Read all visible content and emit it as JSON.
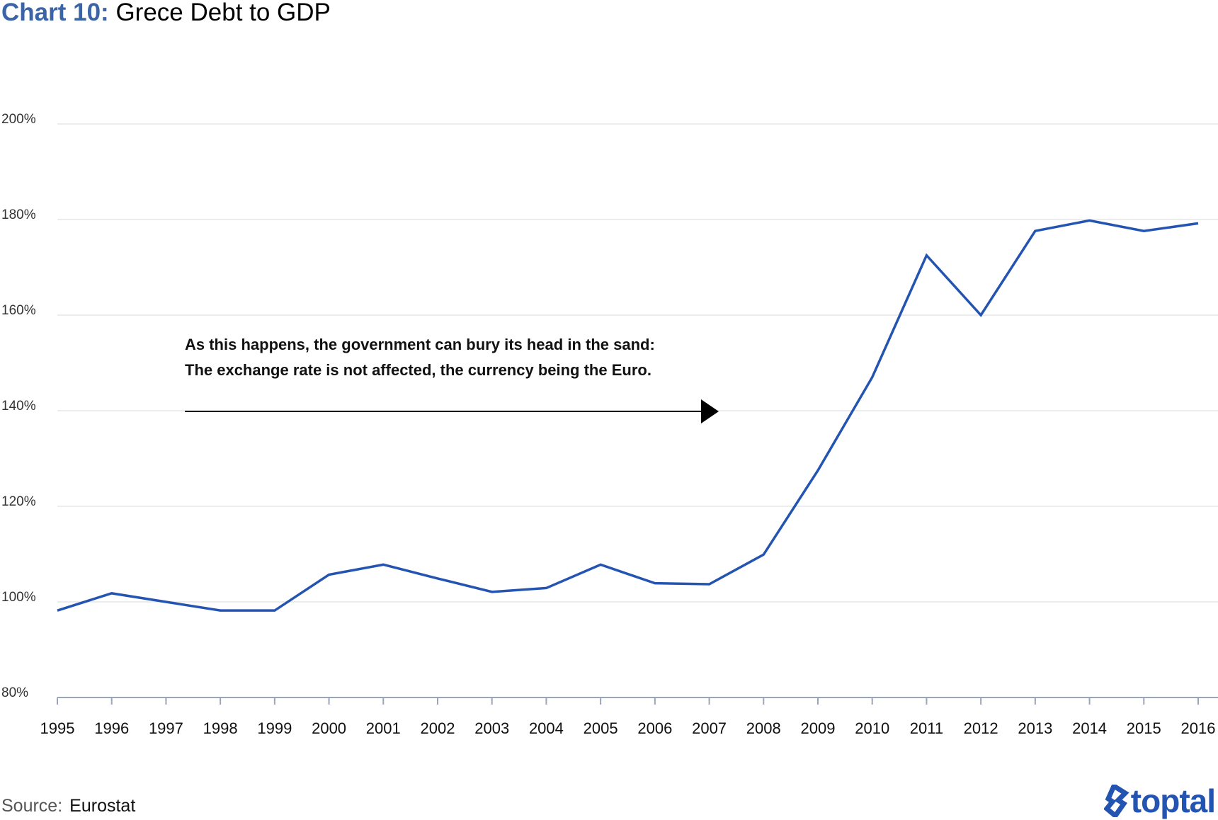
{
  "chart_data": {
    "type": "line",
    "title_lead": "Chart 10:",
    "title": "Grece Debt to GDP",
    "xlabel": "",
    "ylabel": "",
    "x": [
      1995,
      1996,
      1997,
      1998,
      1999,
      2000,
      2001,
      2002,
      2003,
      2004,
      2005,
      2006,
      2007,
      2008,
      2009,
      2010,
      2011,
      2012,
      2013,
      2014,
      2015,
      2016
    ],
    "x_tick_labels": [
      "1995",
      "1996",
      "1997",
      "1998",
      "1999",
      "2000",
      "2001",
      "2002",
      "2003",
      "2004",
      "2005",
      "2006",
      "2007",
      "2008",
      "2009",
      "2010",
      "2011",
      "2012",
      "2013",
      "2014",
      "2015",
      "2016"
    ],
    "series": [
      {
        "values": [
          98.2,
          101.8,
          100,
          98.2,
          98.2,
          105.7,
          107.8,
          104.9,
          102.1,
          102.9,
          107.8,
          103.9,
          103.7,
          109.9,
          127.5,
          147.0,
          172.5,
          160.0,
          177.6,
          179.8,
          177.6,
          179.2
        ],
        "color": "#2454b2"
      }
    ],
    "ylim": [
      80,
      200
    ],
    "y_ticks": [
      80,
      100,
      120,
      140,
      160,
      180,
      200
    ],
    "y_tick_labels": [
      "80%",
      "100%",
      "120%",
      "140%",
      "160%",
      "180%",
      "200%"
    ],
    "grid": "horizontal",
    "annotation": {
      "lines": [
        "As this happens, the government can bury its head in the sand:",
        "The exchange rate is not affected, the currency being the Euro."
      ],
      "arrow": "right"
    }
  },
  "source": {
    "label": "Source:",
    "value": "Eurostat"
  },
  "logo": {
    "text": "toptal",
    "color": "#2454b2"
  }
}
